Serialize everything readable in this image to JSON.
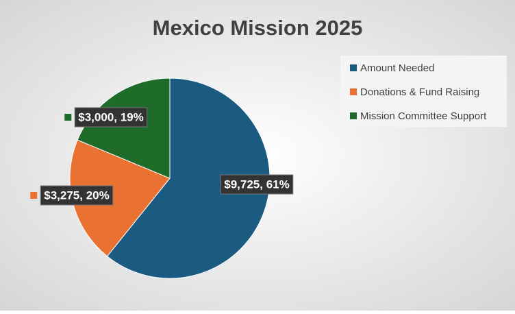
{
  "chart_data": {
    "type": "pie",
    "title": "Mexico Mission 2025",
    "categories": [
      "Amount Needed",
      "Donations & Fund Raising",
      "Mission Committee Support"
    ],
    "values": [
      9725,
      3275,
      3000
    ],
    "value_labels": [
      "$9,725, 61%",
      "$3,275, 20%",
      "$3,000, 19%"
    ],
    "colors": [
      "#1b5b82",
      "#e97132",
      "#1e6b2a"
    ],
    "legend": "right"
  }
}
